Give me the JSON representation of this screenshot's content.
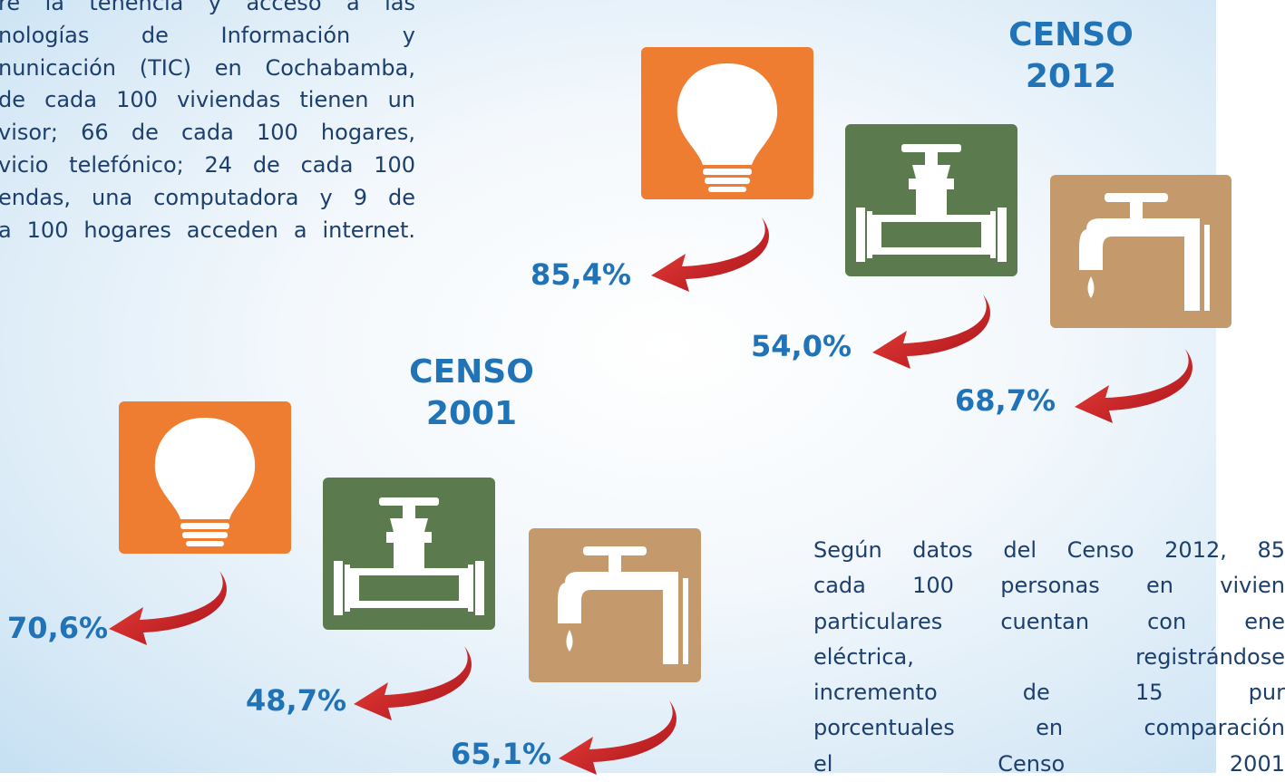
{
  "intro_text": [
    "re la tenencia y acceso a las",
    "nologías de Información y",
    "nunicación (TIC) en Cochabamba,",
    "de cada 100 viviendas tienen un",
    "visor; 66 de cada 100 hogares,",
    "vicio telefónico; 24 de cada 100",
    "endas, una computadora y 9 de",
    "a 100 hogares acceden a internet."
  ],
  "censuses": [
    {
      "title_lines": [
        "CENSO",
        "2012"
      ],
      "indicators": [
        "85,4%",
        "54,0%",
        "68,7%"
      ]
    },
    {
      "title_lines": [
        "CENSO",
        "2001"
      ],
      "indicators": [
        "70,6%",
        "48,7%",
        "65,1%"
      ]
    }
  ],
  "summary_text": [
    "Según datos del Censo 2012, 85",
    "cada 100 personas en vivien",
    "particulares cuentan con ene",
    "eléctrica, registrándose",
    "incremento de 15 pur",
    "porcentuales en comparación",
    "el Censo 2001"
  ]
}
